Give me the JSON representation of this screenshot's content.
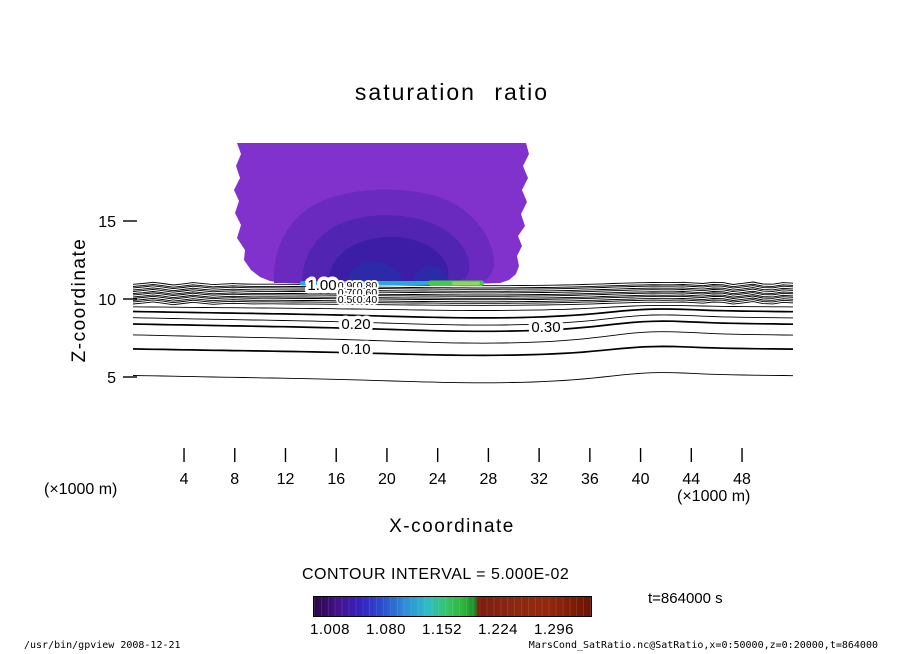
{
  "chart_data": {
    "type": "contour",
    "title": "saturation ratio",
    "xlabel": "X-coordinate",
    "ylabel": "Z-coordinate",
    "x_axis_unit": "(×1000 m)",
    "y_axis_unit": "(×1000 m)",
    "xlim": [
      0,
      52
    ],
    "zlim": [
      0,
      20
    ],
    "x_ticks": [
      4,
      8,
      12,
      16,
      20,
      24,
      28,
      32,
      36,
      40,
      44,
      48
    ],
    "z_ticks": [
      5,
      10,
      15
    ],
    "grid": false,
    "contour_interval_text": "CONTOUR INTERVAL = 5.000E-02",
    "contour_interval": 0.05,
    "time_annotation": "t=864000 s",
    "inline_labels": {
      "l100": "1.00",
      "l090": "0.90",
      "l080": "0.80",
      "l070": "0.70",
      "l060": "0.60",
      "l050": "0.50",
      "l040": "0.40",
      "l030": "0.30",
      "l020": "0.20",
      "l010": "0.10"
    },
    "contour_lines": [
      {
        "value": 0.95,
        "z_approx_km": 11.0
      },
      {
        "value": 0.9,
        "z_approx_km": 10.86
      },
      {
        "value": 0.85,
        "z_approx_km": 10.77
      },
      {
        "value": 0.8,
        "z_approx_km": 10.64
      },
      {
        "value": 0.75,
        "z_approx_km": 10.54
      },
      {
        "value": 0.7,
        "z_approx_km": 10.41
      },
      {
        "value": 0.65,
        "z_approx_km": 10.32
      },
      {
        "value": 0.6,
        "z_approx_km": 10.19
      },
      {
        "value": 0.55,
        "z_approx_km": 10.1
      },
      {
        "value": 0.5,
        "z_approx_km": 9.97
      },
      {
        "value": 0.45,
        "z_approx_km": 9.87
      },
      {
        "value": 0.4,
        "z_approx_km": 9.74
      },
      {
        "value": 0.35,
        "z_approx_km": 9.5
      },
      {
        "value": 0.3,
        "z_approx_km": 9.2
      },
      {
        "value": 0.25,
        "z_approx_km": 8.8
      },
      {
        "value": 0.2,
        "z_approx_km": 8.4
      },
      {
        "value": 0.15,
        "z_approx_km": 7.7
      },
      {
        "value": 0.1,
        "z_approx_km": 6.8
      },
      {
        "value": 0.05,
        "z_approx_km": 5.1
      }
    ],
    "filled_plume": {
      "description": "filled contour region where saturation ratio exceeds 1 (plume between x≈8–31 km, z≈11 km up to top of domain at 20 km)",
      "colors": [
        "#8232cc",
        "#6a2ac0",
        "#5224b2",
        "#3c1ea6",
        "#2c2aa8"
      ]
    },
    "boundary_streak": {
      "description": "thin high-saturation band at cloud base near z≈11 km",
      "colors": [
        "#2aa8d8",
        "#46c848",
        "#8ed858"
      ]
    },
    "colorbar": {
      "labels": [
        "1.008",
        "1.080",
        "1.152",
        "1.224",
        "1.296"
      ],
      "colors": [
        "#2c0848",
        "#3322c2",
        "#2a52cc",
        "#2cbcc6",
        "#2eb43a",
        "#7c1c0c",
        "#94280c",
        "#6c1404"
      ]
    }
  },
  "footer": {
    "left": "/usr/bin/gpview  2008-12-21",
    "right": "MarsCond_SatRatio.nc@SatRatio,x=0:50000,z=0:20000,t=864000"
  }
}
